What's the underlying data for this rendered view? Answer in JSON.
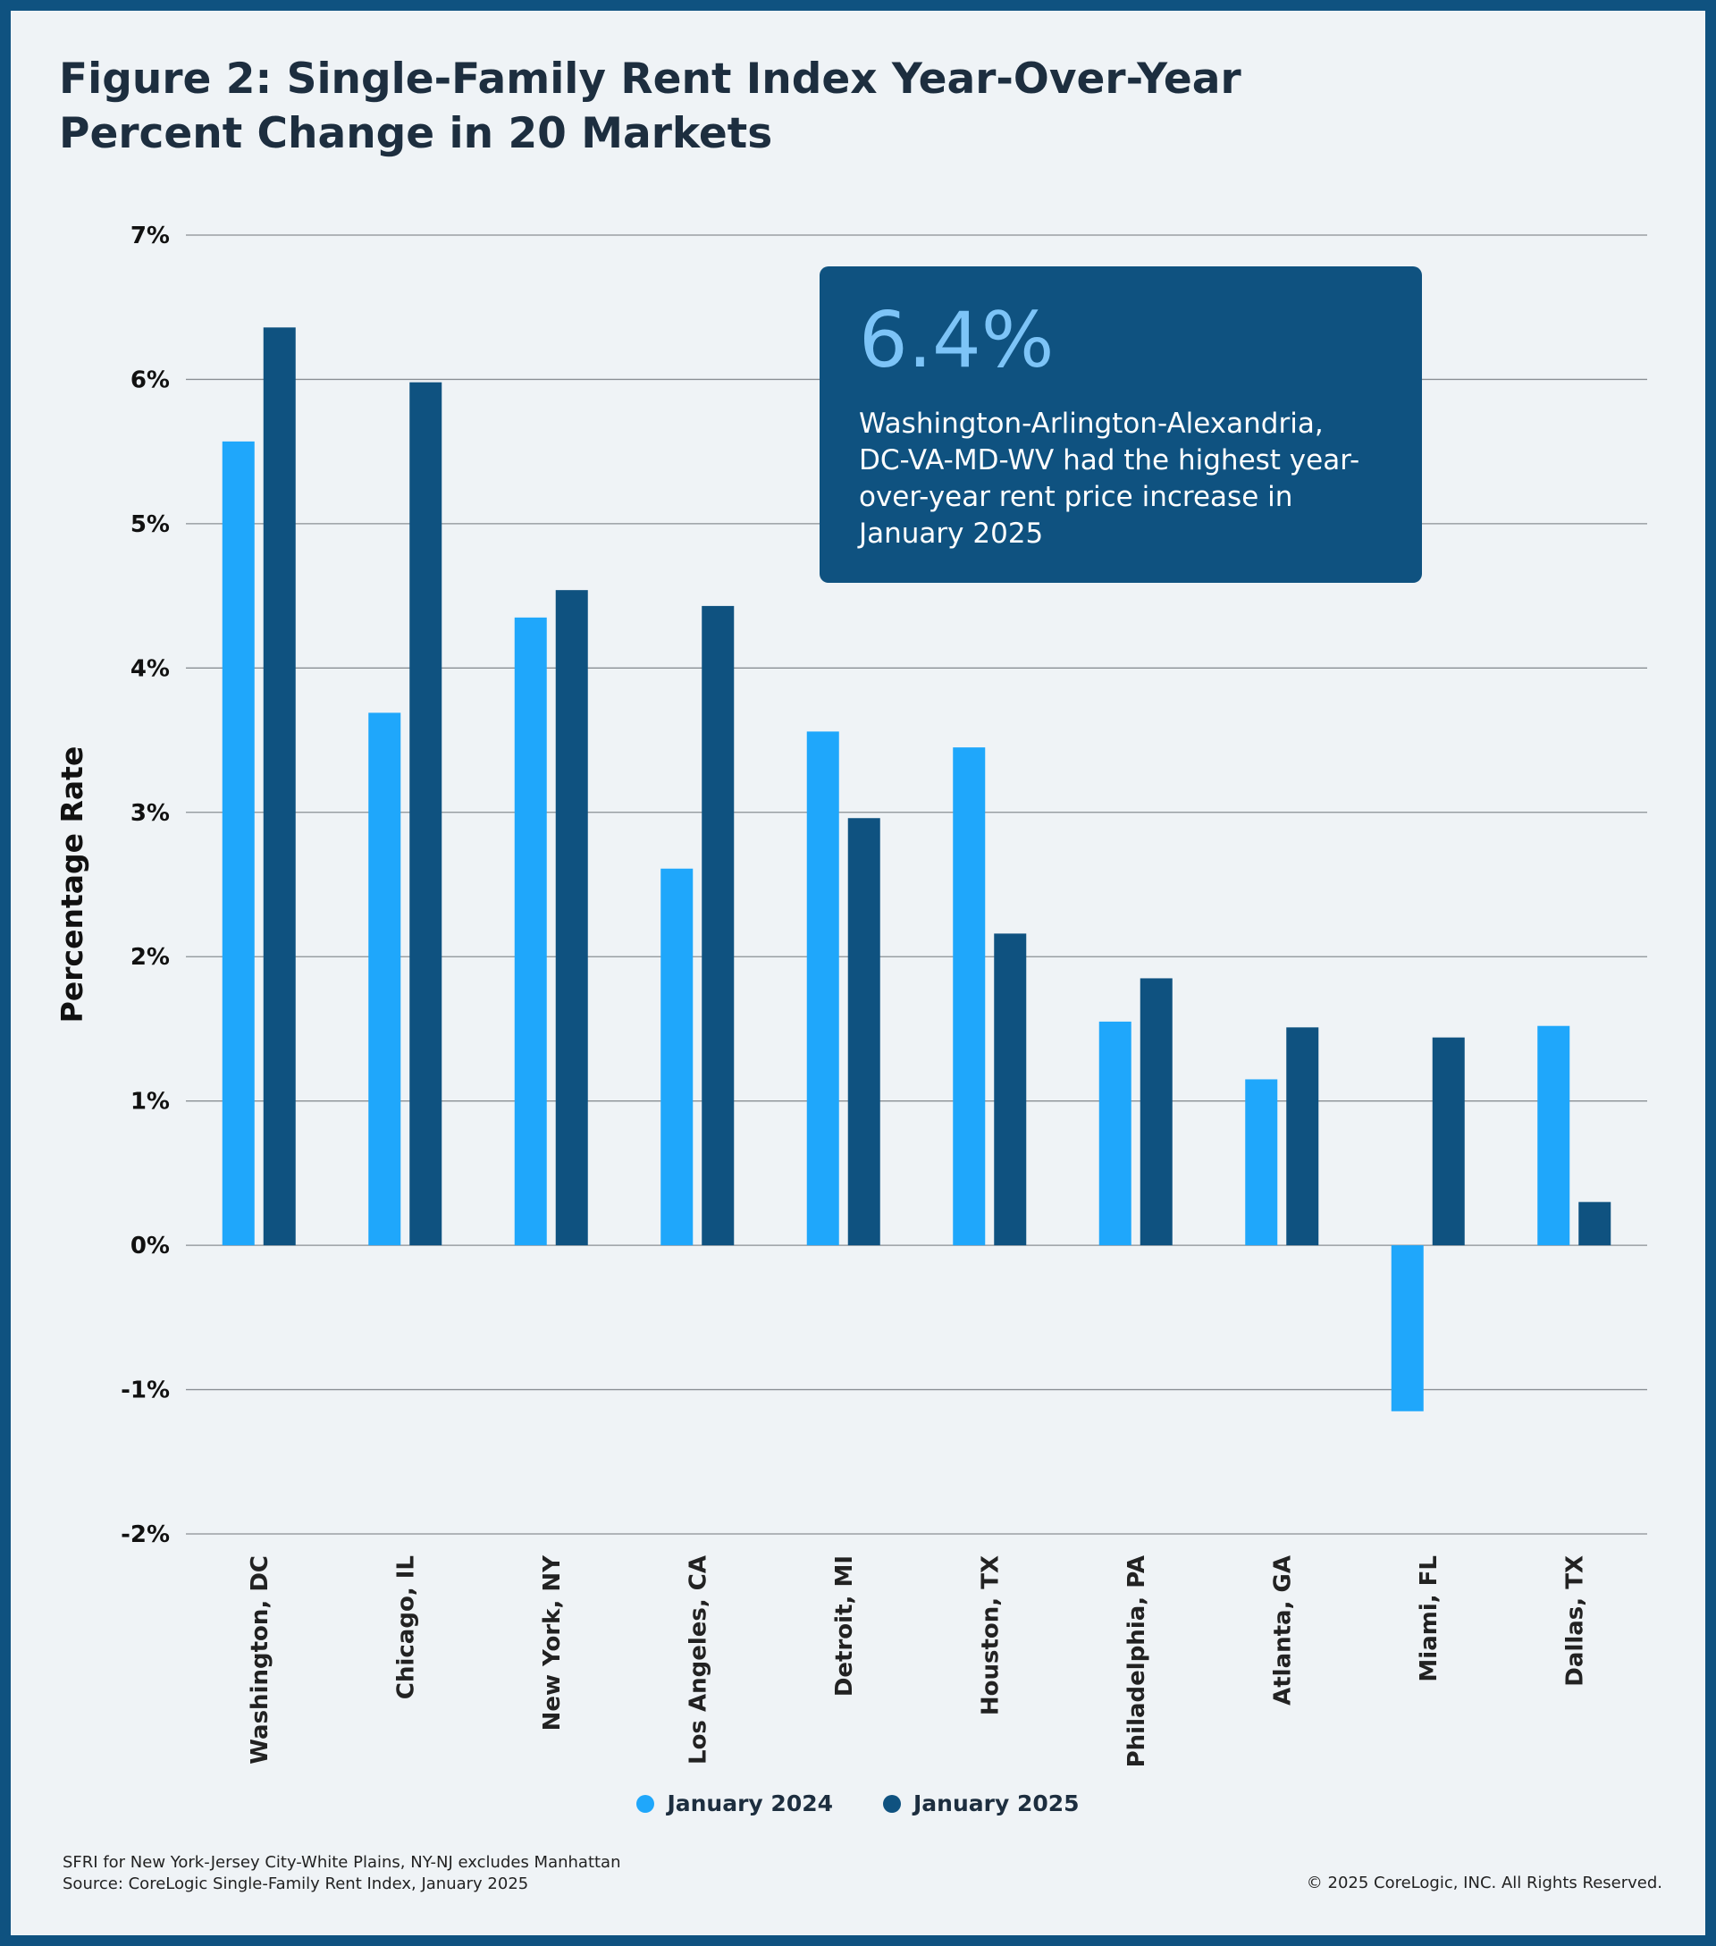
{
  "title_line1": "Figure 2: Single-Family Rent Index Year-Over-Year",
  "title_line2": "Percent Change in 20 Markets",
  "callout": {
    "value": "6.4%",
    "text": "Washington-Arlington-Alexandria, DC-VA-MD-WV had the highest year-over-year rent price increase in January 2025"
  },
  "legend": [
    {
      "label": "January 2024",
      "color": "#1fa7fb"
    },
    {
      "label": "January 2025",
      "color": "#0f5280"
    }
  ],
  "footer": {
    "note1": "SFRI for New York-Jersey City-White Plains, NY-NJ excludes Manhattan",
    "note2": "Source: CoreLogic Single-Family Rent Index, January 2025",
    "copyright": "© 2025 CoreLogic, INC. All Rights Reserved."
  },
  "chart_data": {
    "type": "bar",
    "title": "Figure 2: Single-Family Rent Index Year-Over-Year Percent Change in 20 Markets",
    "xlabel": "",
    "ylabel": "Percentage Rate",
    "ylim": [
      -2,
      7
    ],
    "yticks": [
      7,
      6,
      5,
      4,
      3,
      2,
      1,
      0,
      -1,
      -2
    ],
    "ytick_labels": [
      "7%",
      "6%",
      "5%",
      "4%",
      "3%",
      "2%",
      "1%",
      "0%",
      "-1%",
      "-2%"
    ],
    "grid": true,
    "legend_position": "bottom-center",
    "categories": [
      "Washington, DC",
      "Chicago, IL",
      "New York, NY",
      "Los Angeles, CA",
      "Detroit, MI",
      "Houston, TX",
      "Philadelphia, PA",
      "Atlanta, GA",
      "Miami, FL",
      "Dallas, TX"
    ],
    "series": [
      {
        "name": "January 2024",
        "color": "#1fa7fb",
        "values": [
          5.57,
          3.69,
          4.35,
          2.61,
          3.56,
          3.45,
          1.55,
          1.15,
          -1.15,
          1.52
        ]
      },
      {
        "name": "January 2025",
        "color": "#0f5280",
        "values": [
          6.36,
          5.98,
          4.54,
          4.43,
          2.96,
          2.16,
          1.85,
          1.51,
          1.44,
          0.3
        ]
      }
    ]
  }
}
